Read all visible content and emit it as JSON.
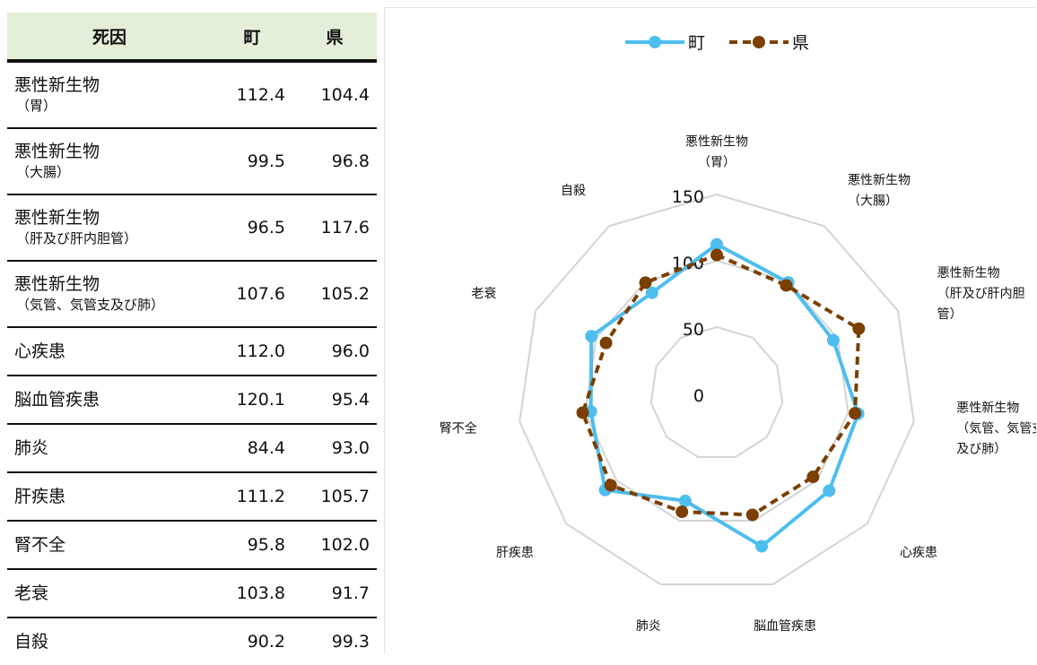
{
  "table": {
    "headers": {
      "cause": "死因",
      "town": "町",
      "pref": "県"
    },
    "rows": [
      {
        "main": "悪性新生物",
        "sub": "（胃）",
        "town": "112.4",
        "pref": "104.4"
      },
      {
        "main": "悪性新生物",
        "sub": "（大腸）",
        "town": "99.5",
        "pref": "96.8"
      },
      {
        "main": "悪性新生物",
        "sub": "（肝及び肝内胆管）",
        "town": "96.5",
        "pref": "117.6"
      },
      {
        "main": "悪性新生物",
        "sub": "（気管、気管支及び肺）",
        "town": "107.6",
        "pref": "105.2"
      },
      {
        "main": "心疾患",
        "sub": "",
        "town": "112.0",
        "pref": "96.0"
      },
      {
        "main": "脳血管疾患",
        "sub": "",
        "town": "120.1",
        "pref": "95.4"
      },
      {
        "main": "肺炎",
        "sub": "",
        "town": "84.4",
        "pref": "93.0"
      },
      {
        "main": "肝疾患",
        "sub": "",
        "town": "111.2",
        "pref": "105.7"
      },
      {
        "main": "腎不全",
        "sub": "",
        "town": "95.8",
        "pref": "102.0"
      },
      {
        "main": "老衰",
        "sub": "",
        "town": "103.8",
        "pref": "91.7"
      },
      {
        "main": "自殺",
        "sub": "",
        "town": "90.2",
        "pref": "99.3"
      }
    ]
  },
  "chart_data": {
    "type": "radar",
    "categories": [
      [
        "悪性新生物",
        "（胃）"
      ],
      [
        "悪性新生物",
        "（大腸）"
      ],
      [
        "悪性新生物",
        "（肝及び肝内胆",
        "管）"
      ],
      [
        "悪性新生物",
        "（気管、気管支",
        "及び肺）"
      ],
      [
        "心疾患"
      ],
      [
        "脳血管疾患"
      ],
      [
        "肺炎"
      ],
      [
        "肝疾患"
      ],
      [
        "腎不全"
      ],
      [
        "老衰"
      ],
      [
        "自殺"
      ]
    ],
    "series": [
      {
        "name": "町",
        "values": [
          112.4,
          99.5,
          96.5,
          107.6,
          112.0,
          120.1,
          84.4,
          111.2,
          95.8,
          103.8,
          90.2
        ],
        "color": "#4dbeee",
        "dash": false,
        "marker_color": "#4dbeee"
      },
      {
        "name": "県",
        "values": [
          104.4,
          96.8,
          117.6,
          105.2,
          96.0,
          95.4,
          93.0,
          105.7,
          102.0,
          91.7,
          99.3
        ],
        "color": "#7b3f00",
        "dash": true,
        "marker_color": "#7b3f00"
      }
    ],
    "rlim": [
      0,
      150
    ],
    "ticks": [
      0,
      50,
      100,
      150
    ],
    "tick_labels": [
      "0",
      "50",
      "100",
      "150"
    ],
    "grid_color": "#d4d4d4",
    "legend_position": "top"
  }
}
